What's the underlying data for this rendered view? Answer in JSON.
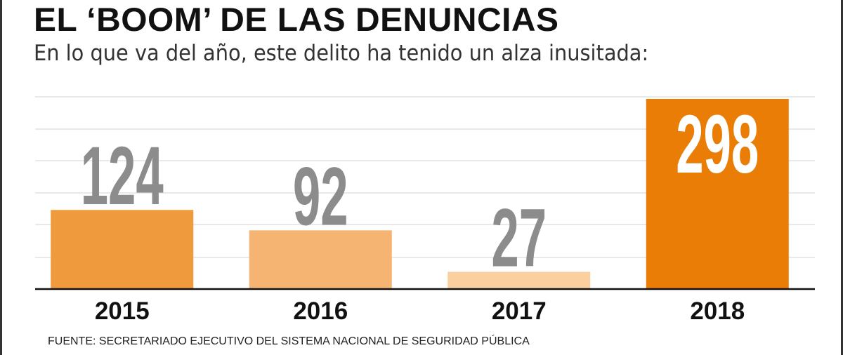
{
  "title": "EL ‘BOOM’ DE LAS DENUNCIAS",
  "subtitle": "En lo que va del año, este delito ha tenido un alza inusitada:",
  "source": "FUENTE: SECRETARIADO EJECUTIVO DEL SISTEMA NACIONAL DE SEGURIDAD PÚBLICA",
  "chart_data": {
    "type": "bar",
    "title": "EL ‘BOOM’ DE LAS DENUNCIAS",
    "xlabel": "",
    "ylabel": "",
    "categories": [
      "2015",
      "2016",
      "2017",
      "2018"
    ],
    "values": [
      124,
      92,
      27,
      298
    ],
    "value_labels": [
      "124",
      "92",
      "27",
      "298"
    ],
    "colors": [
      "#f09a3e",
      "#f5b472",
      "#fad09e",
      "#ea7d06"
    ],
    "label_colors": [
      "#8c8c8c",
      "#8c8c8c",
      "#8c8c8c",
      "#ffffff"
    ],
    "ylim": [
      0,
      298
    ],
    "grid": true
  }
}
